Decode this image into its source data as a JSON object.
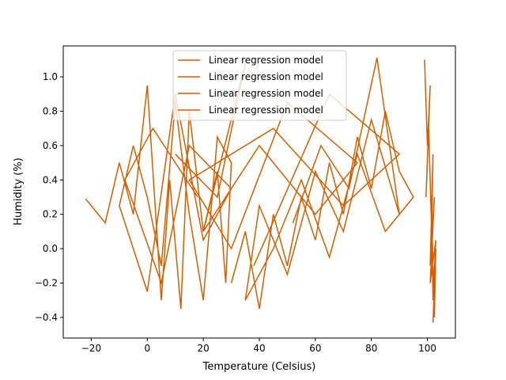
{
  "chart_data": {
    "type": "line",
    "title": "",
    "xlabel": "Temperature (Celsius)",
    "ylabel": "Humidity (%)",
    "xlim": [
      -30,
      110
    ],
    "ylim": [
      -0.52,
      1.18
    ],
    "x_ticks": [
      -20,
      0,
      20,
      40,
      60,
      80,
      100
    ],
    "y_ticks": [
      -0.4,
      -0.2,
      0.0,
      0.2,
      0.4,
      0.6,
      0.8,
      1.0
    ],
    "x_tick_labels": [
      "−20",
      "0",
      "20",
      "40",
      "60",
      "80",
      "100"
    ],
    "y_tick_labels": [
      "−0.4",
      "−0.2",
      "0.0",
      "0.2",
      "0.4",
      "0.6",
      "0.8",
      "1.0"
    ],
    "grid": false,
    "legend_position": "top-center",
    "line_color": "#d55e00",
    "series": [
      {
        "name": "Linear regression model",
        "cluster": "left",
        "x": [
          -22,
          -15,
          -10,
          -5,
          0,
          5,
          8,
          12,
          15,
          20,
          25,
          28,
          30,
          25,
          20,
          15,
          10,
          5,
          0,
          -5,
          -10,
          0,
          10,
          20,
          30,
          15,
          5,
          -8,
          2,
          18
        ],
        "y": [
          0.29,
          0.15,
          0.5,
          0.2,
          0.95,
          -0.3,
          0.4,
          -0.35,
          0.8,
          0.1,
          0.45,
          -0.2,
          0.5,
          0.65,
          -0.3,
          0.2,
          0.85,
          -0.1,
          0.3,
          0.6,
          0.25,
          -0.25,
          0.9,
          0.05,
          0.35,
          0.6,
          -0.2,
          0.4,
          0.7,
          0.3
        ]
      },
      {
        "name": "Linear regression model",
        "cluster": "middle-right",
        "x": [
          30,
          35,
          40,
          45,
          50,
          55,
          60,
          65,
          70,
          75,
          80,
          85,
          90,
          95,
          85,
          75,
          65,
          55,
          45,
          35,
          40,
          50,
          60,
          70,
          80,
          90,
          82,
          72,
          62,
          52
        ],
        "y": [
          -0.2,
          0.1,
          -0.35,
          0.2,
          -0.1,
          0.3,
          0.05,
          0.5,
          0.2,
          0.65,
          0.35,
          0.8,
          0.45,
          0.3,
          0.1,
          0.55,
          -0.05,
          0.4,
          0.0,
          -0.3,
          0.25,
          -0.15,
          0.45,
          0.1,
          0.75,
          0.2,
          1.11,
          0.35,
          0.6,
          0.15
        ]
      },
      {
        "name": "Linear regression model",
        "cluster": "far-right",
        "x": [
          99,
          100,
          101,
          99.5,
          100.5,
          101.5,
          102,
          101,
          102.5,
          101,
          103,
          102,
          101.5,
          102.5,
          103,
          102
        ],
        "y": [
          1.1,
          0.6,
          0.95,
          0.3,
          0.7,
          0.1,
          0.55,
          -0.1,
          0.3,
          -0.2,
          0.05,
          -0.3,
          0.2,
          -0.4,
          0.0,
          -0.43
        ]
      },
      {
        "name": "Linear regression model",
        "cluster": "bridge",
        "x": [
          10,
          25,
          35,
          20,
          40,
          60,
          75,
          50,
          30,
          15,
          45,
          70,
          90,
          65,
          38
        ],
        "y": [
          0.55,
          0.3,
          1.08,
          0.1,
          0.6,
          0.2,
          0.5,
          0.85,
          0.0,
          0.4,
          0.7,
          0.25,
          0.55,
          0.9,
          -0.1
        ]
      }
    ]
  }
}
